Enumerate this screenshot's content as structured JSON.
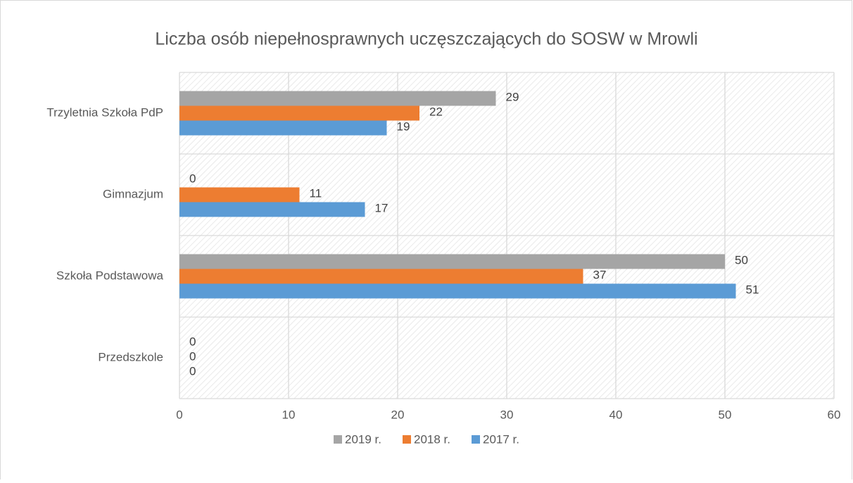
{
  "chart_data": {
    "type": "bar",
    "orientation": "horizontal",
    "title": "Liczba osób niepełnosprawnych uczęszczających do SOSW w Mrowli",
    "categories": [
      "Przedszkole",
      "Szkoła Podstawowa",
      "Gimnazjum",
      "Trzyletnia Szkoła PdP"
    ],
    "series": [
      {
        "name": "2019 r.",
        "color": "#a5a5a5",
        "values": [
          0,
          50,
          0,
          29
        ]
      },
      {
        "name": "2018 r.",
        "color": "#ed7d31",
        "values": [
          0,
          37,
          11,
          22
        ]
      },
      {
        "name": "2017 r.",
        "color": "#5b9bd5",
        "values": [
          0,
          51,
          17,
          19
        ]
      }
    ],
    "xlim": [
      0,
      60
    ],
    "xticks": [
      0,
      10,
      20,
      30,
      40,
      50,
      60
    ],
    "grid": true,
    "legend": "bottom"
  }
}
